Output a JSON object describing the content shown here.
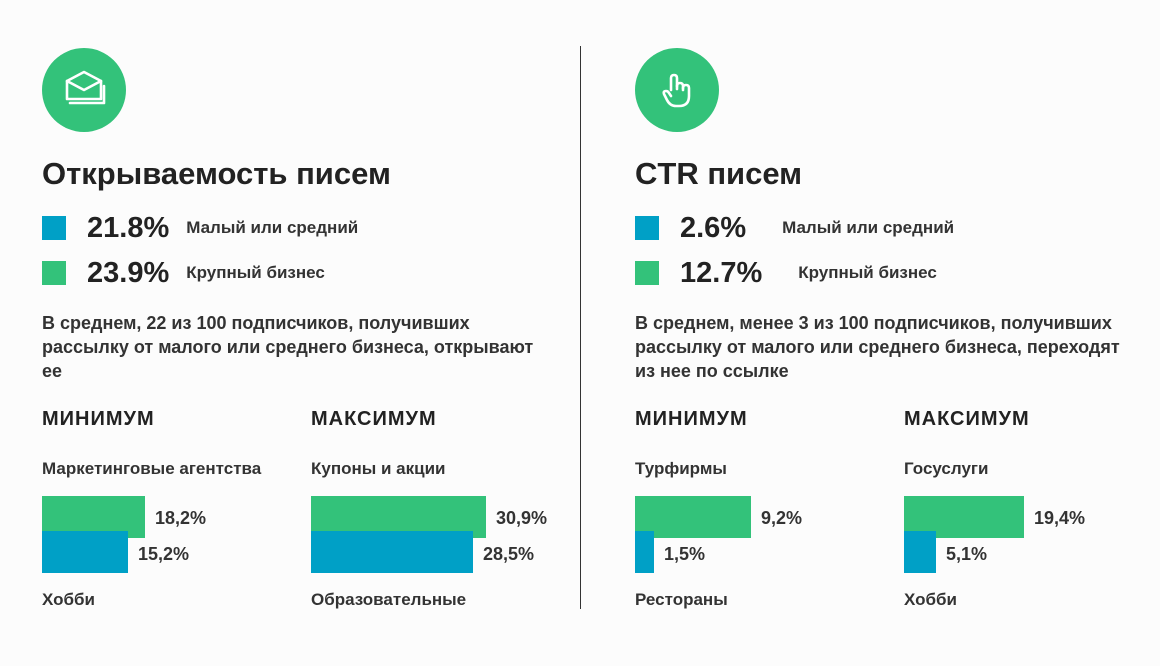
{
  "colors": {
    "green": "#33c27a",
    "blue": "#00a0c6",
    "icon_circle": "#33c27a"
  },
  "panels": [
    {
      "icon": "envelope-icon",
      "title": "Открываемость писем",
      "stats": [
        {
          "value": "21.8%",
          "label": "Малый или средний",
          "color": "#00a0c6"
        },
        {
          "value": "23.9%",
          "label": "Крупный бизнес",
          "color": "#33c27a"
        }
      ],
      "description": "В среднем, 22 из 100 подписчиков, получивших рассылку от малого или среднего бизнеса, открывают ее",
      "sections": [
        {
          "heading": "МИНИМУМ",
          "top_category": "Маркетинговые агентства",
          "bottom_category": "Хобби",
          "top_label": "18,2%",
          "bottom_label": "15,2%"
        },
        {
          "heading": "МАКСИМУМ",
          "top_category": "Купоны и акции",
          "bottom_category": "Образовательные",
          "top_label": "30,9%",
          "bottom_label": "28,5%"
        }
      ]
    },
    {
      "icon": "pointer-hand-icon",
      "title": "CTR писем",
      "stats": [
        {
          "value": "2.6%",
          "label": "Малый или средний",
          "color": "#00a0c6"
        },
        {
          "value": "12.7%",
          "label": "Крупный бизнес",
          "color": "#33c27a"
        }
      ],
      "description": "В среднем, менее 3 из 100 подписчиков, получивших рассылку от малого или среднего бизнеса, переходят из нее по ссылке",
      "sections": [
        {
          "heading": "МИНИМУМ",
          "top_category": "Турфирмы",
          "bottom_category": "Рестораны",
          "top_label": "9,2%",
          "bottom_label": "1,5%"
        },
        {
          "heading": "МАКСИМУМ",
          "top_category": "Госуслуги",
          "bottom_category": "Хобби",
          "top_label": "19,4%",
          "bottom_label": "5,1%"
        }
      ]
    }
  ],
  "chart_data": [
    {
      "type": "bar",
      "chart": "Открываемость писем — МИНИМУМ",
      "categories": [
        "Маркетинговые агентства",
        "Хобби"
      ],
      "values": [
        18.2,
        15.2
      ],
      "colors": [
        "#33c27a",
        "#00a0c6"
      ]
    },
    {
      "type": "bar",
      "chart": "Открываемость писем — МАКСИМУМ",
      "categories": [
        "Купоны и акции",
        "Образовательные"
      ],
      "values": [
        30.9,
        28.5
      ],
      "colors": [
        "#33c27a",
        "#00a0c6"
      ]
    },
    {
      "type": "bar",
      "chart": "CTR писем — МИНИМУМ",
      "categories": [
        "Турфирмы",
        "Рестораны"
      ],
      "values": [
        9.2,
        1.5
      ],
      "colors": [
        "#33c27a",
        "#00a0c6"
      ]
    },
    {
      "type": "bar",
      "chart": "CTR писем — МАКСИМУМ",
      "categories": [
        "Госуслуги",
        "Хобби"
      ],
      "values": [
        19.4,
        5.1
      ],
      "colors": [
        "#33c27a",
        "#00a0c6"
      ]
    }
  ]
}
